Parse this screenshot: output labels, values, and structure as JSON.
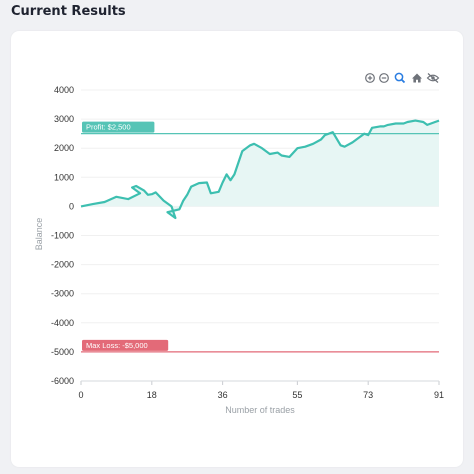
{
  "page": {
    "title": "Current Results"
  },
  "toolbar": {
    "icons": [
      "zoom-in-icon",
      "zoom-out-icon",
      "zoom-select-icon",
      "home-icon",
      "eye-off-icon"
    ]
  },
  "colors": {
    "line": "#3dbfb0",
    "area": "#e7f6f4",
    "profit": "#56c4b6",
    "loss": "#e36a78",
    "axis_text": "#333333",
    "axis_title": "#9aa0a6",
    "grid": "#f0f0f0"
  },
  "chart_data": {
    "type": "line",
    "xlabel": "Number of trades",
    "ylabel": "Balance",
    "xlim": [
      0,
      91
    ],
    "ylim": [
      -6000,
      4000
    ],
    "xticks": [
      "0",
      "18",
      "36",
      "55",
      "73",
      "91"
    ],
    "yticks": [
      "4000",
      "3000",
      "2000",
      "1000",
      "0",
      "-1000",
      "-2000",
      "-3000",
      "-4000",
      "-5000",
      "-6000"
    ],
    "annotations": [
      {
        "label": "Profit: $2,500",
        "y": 2500,
        "kind": "profit"
      },
      {
        "label": "Max Loss: -$5,000",
        "y": -5000,
        "kind": "loss"
      }
    ],
    "series": [
      {
        "x": [
          0,
          3,
          6,
          9,
          12,
          15,
          13,
          14,
          16,
          17,
          18,
          19,
          21,
          23,
          24,
          22,
          25,
          26,
          27,
          28,
          30,
          32,
          33,
          35,
          36,
          37,
          38,
          39,
          41,
          43,
          44,
          46,
          48,
          50,
          51,
          53,
          55,
          57,
          59,
          61,
          62,
          64,
          66,
          67,
          69,
          71,
          72,
          73,
          74,
          76,
          77,
          78,
          80,
          82,
          83,
          85,
          87,
          88,
          90,
          91
        ],
        "y": [
          0,
          80,
          150,
          330,
          250,
          450,
          650,
          700,
          550,
          400,
          420,
          480,
          200,
          0,
          -400,
          -200,
          -100,
          200,
          400,
          680,
          800,
          820,
          450,
          500,
          820,
          1100,
          900,
          1100,
          1900,
          2100,
          2150,
          2000,
          1800,
          1850,
          1750,
          1700,
          2000,
          2050,
          2150,
          2300,
          2450,
          2550,
          2100,
          2050,
          2200,
          2400,
          2500,
          2450,
          2700,
          2750,
          2750,
          2800,
          2850,
          2850,
          2900,
          2950,
          2900,
          2800,
          2900,
          2950
        ]
      }
    ]
  }
}
